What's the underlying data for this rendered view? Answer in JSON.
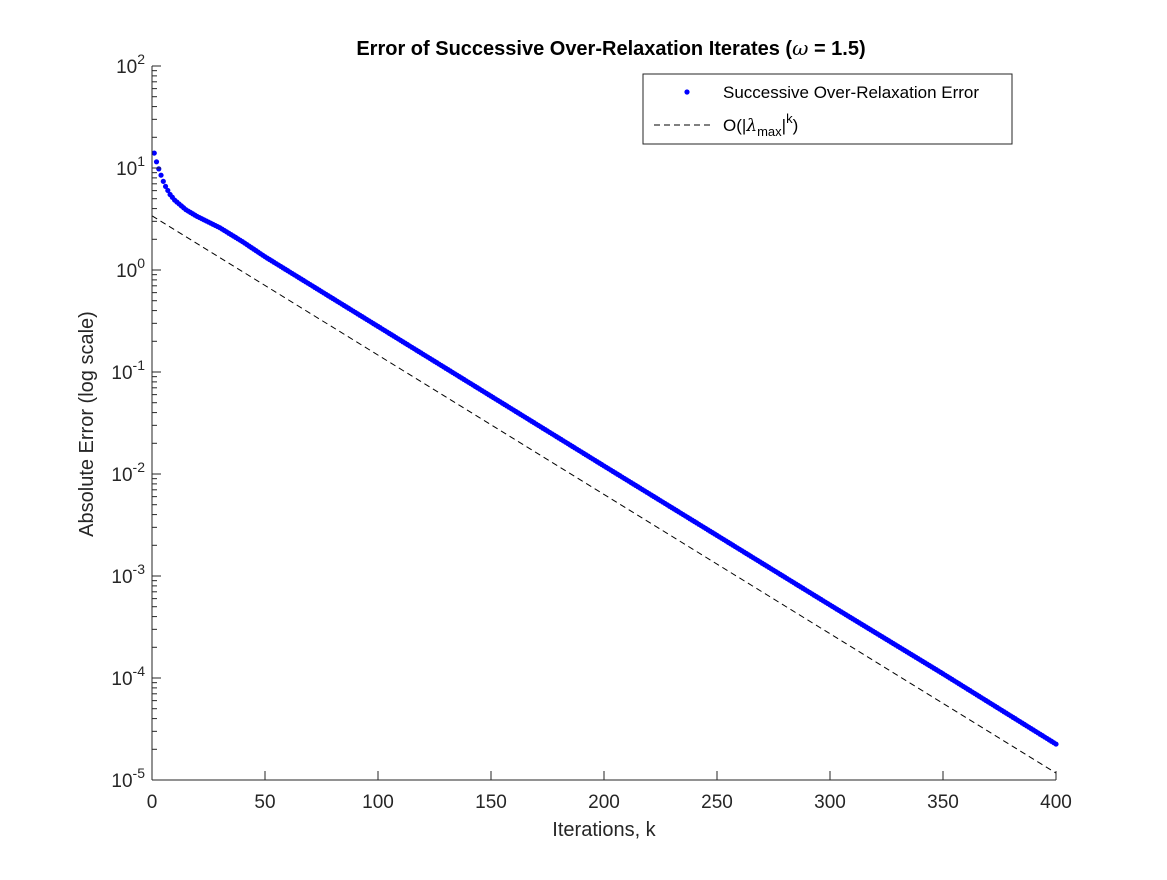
{
  "chart_data": {
    "type": "scatter",
    "title_prefix": "Error of Successive Over-Relaxation Iterates (",
    "title_symbol": "ω",
    "title_suffix": " = 1.5)",
    "xlabel": "Iterations, k",
    "ylabel": "Absolute Error (log scale)",
    "xlim": [
      0,
      400
    ],
    "ylim_log10": [
      -5,
      2
    ],
    "yscale": "log",
    "grid": false,
    "legend_placement": "top-right",
    "x_ticks": [
      "0",
      "50",
      "100",
      "150",
      "200",
      "250",
      "300",
      "350",
      "400"
    ],
    "y_ticks": [
      {
        "base": "10",
        "exp": "2"
      },
      {
        "base": "10",
        "exp": "1"
      },
      {
        "base": "10",
        "exp": "0"
      },
      {
        "base": "10",
        "exp": "-1"
      },
      {
        "base": "10",
        "exp": "-2"
      },
      {
        "base": "10",
        "exp": "-3"
      },
      {
        "base": "10",
        "exp": "-4"
      },
      {
        "base": "10",
        "exp": "-5"
      }
    ],
    "series": [
      {
        "name": "Successive Over-Relaxation Error",
        "style": "dots",
        "color": "#0000ff",
        "k_start": 1,
        "k_end": 400,
        "anchor_points": [
          {
            "x": 1,
            "y": 14.0
          },
          {
            "x": 2,
            "y": 11.5
          },
          {
            "x": 3,
            "y": 9.8
          },
          {
            "x": 4,
            "y": 8.5
          },
          {
            "x": 5,
            "y": 7.4
          },
          {
            "x": 6,
            "y": 6.6
          },
          {
            "x": 8,
            "y": 5.5
          },
          {
            "x": 10,
            "y": 4.85
          },
          {
            "x": 15,
            "y": 3.9
          },
          {
            "x": 20,
            "y": 3.35
          },
          {
            "x": 30,
            "y": 2.6
          },
          {
            "x": 40,
            "y": 1.9
          },
          {
            "x": 50,
            "y": 1.35
          },
          {
            "x": 100,
            "y": 0.28
          },
          {
            "x": 150,
            "y": 0.058
          },
          {
            "x": 200,
            "y": 0.012
          },
          {
            "x": 250,
            "y": 0.0025
          },
          {
            "x": 300,
            "y": 0.00052
          },
          {
            "x": 350,
            "y": 0.00011
          },
          {
            "x": 400,
            "y": 2.25e-05
          }
        ]
      },
      {
        "name_prefix": "O(|",
        "name_symbol": "λ",
        "name_sub": "max",
        "name_mid": "|",
        "name_sup": "k",
        "name_suffix": ")",
        "style": "dashed",
        "color": "#000000",
        "x": [
          0,
          400
        ],
        "y": [
          3.4,
          1.17e-05
        ]
      }
    ]
  }
}
